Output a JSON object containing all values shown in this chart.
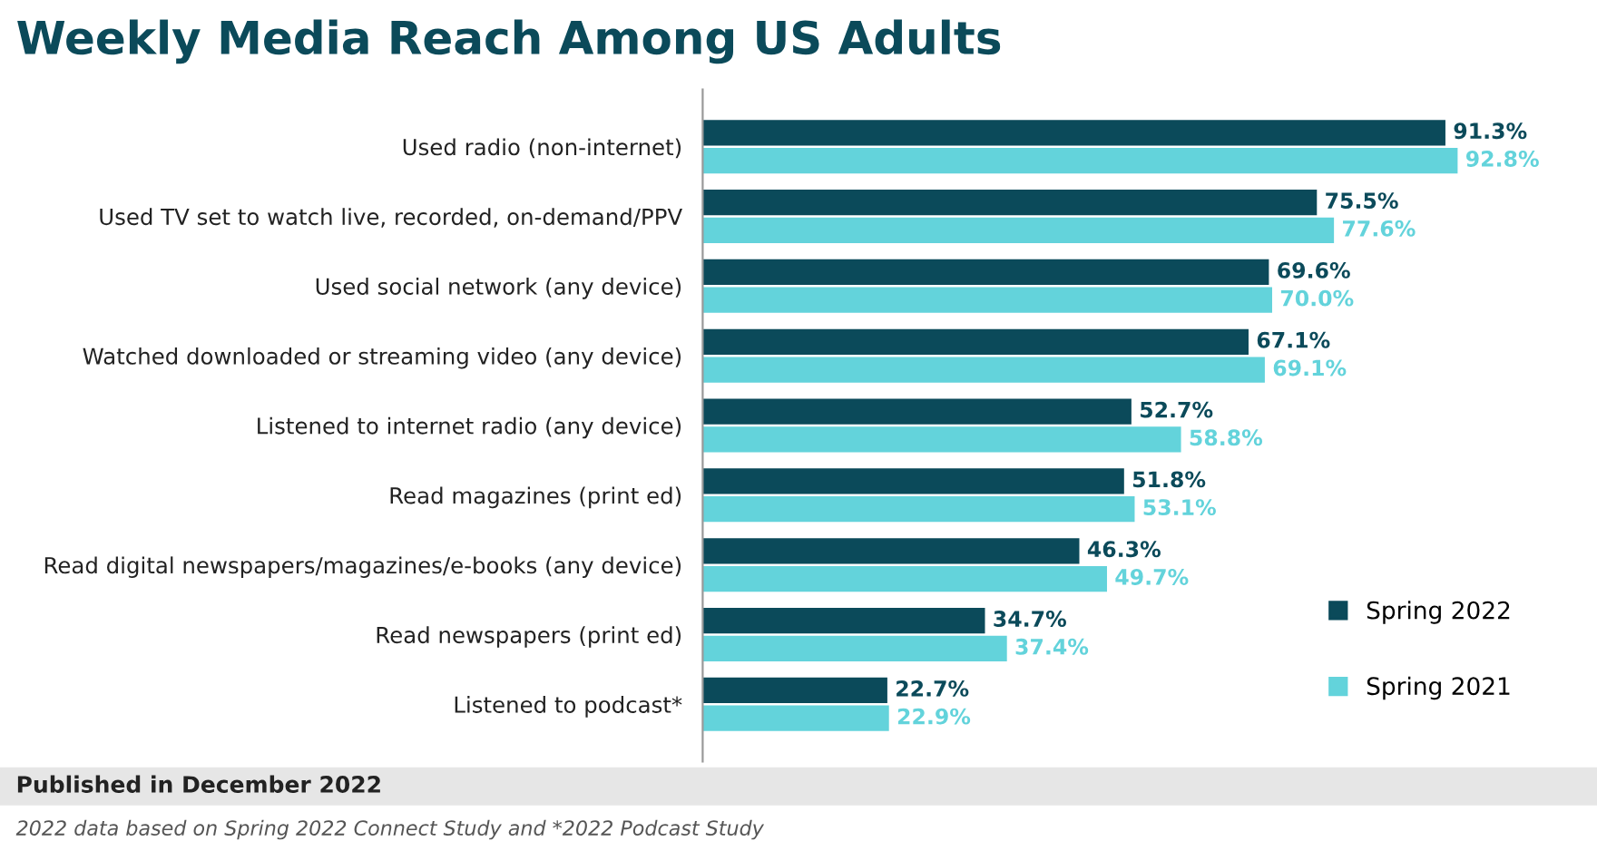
{
  "chart_data": {
    "type": "bar",
    "orientation": "horizontal",
    "title": "Weekly Media Reach Among US Adults",
    "categories": [
      "Used radio (non-internet)",
      "Used TV set to watch live, recorded, on-demand/PPV",
      "Used social network (any device)",
      "Watched downloaded or streaming video (any device)",
      "Listened to internet radio (any device)",
      "Read magazines (print ed)",
      "Read digital newspapers/magazines/e-books (any device)",
      "Read newspapers (print ed)",
      "Listened to podcast*"
    ],
    "series": [
      {
        "name": "Spring 2022",
        "color": "#0b4a5a",
        "values": [
          91.3,
          75.5,
          69.6,
          67.1,
          52.7,
          51.8,
          46.3,
          34.7,
          22.7
        ],
        "value_labels": [
          "91.3%",
          "75.5%",
          "69.6%",
          "67.1%",
          "52.7%",
          "51.8%",
          "46.3%",
          "34.7%",
          "22.7%"
        ]
      },
      {
        "name": "Spring 2021",
        "color": "#63d3db",
        "values": [
          92.8,
          77.6,
          70.0,
          69.1,
          58.8,
          53.1,
          49.7,
          37.4,
          22.9
        ],
        "value_labels": [
          "92.8%",
          "77.6%",
          "70.0%",
          "69.1%",
          "58.8%",
          "53.1%",
          "49.7%",
          "37.4%",
          "22.9%"
        ]
      }
    ],
    "legend": "bottom right",
    "grid": false,
    "annotations": [
      "Published in December 2022",
      "2022 data based on Spring 2022 Connect Study and *2022 Podcast Study"
    ]
  }
}
